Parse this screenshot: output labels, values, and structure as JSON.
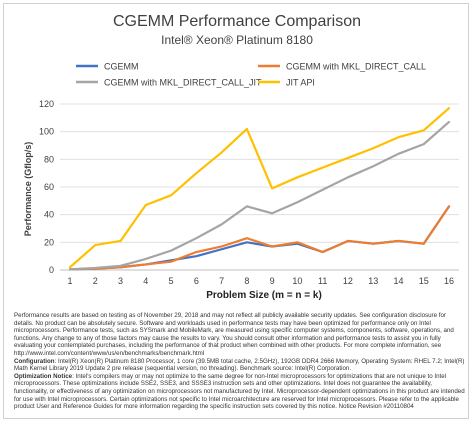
{
  "chart_data": {
    "type": "line",
    "title": "CGEMM Performance Comparison",
    "subtitle": "Intel® Xeon® Platinum 8180",
    "xlabel": "Problem Size (m = n = k)",
    "ylabel": "Performance (Gflop/s)",
    "x": [
      1,
      2,
      3,
      4,
      5,
      6,
      7,
      8,
      9,
      10,
      11,
      12,
      13,
      14,
      15,
      16
    ],
    "ylim": [
      0,
      120
    ],
    "yticks": [
      0,
      20,
      40,
      60,
      80,
      100,
      120
    ],
    "grid": true,
    "legend_position": "top",
    "series": [
      {
        "name": "CGEMM",
        "color": "#4472c4",
        "values": [
          0.5,
          1,
          2,
          4,
          7,
          10,
          15,
          20,
          17,
          19,
          13,
          21,
          19,
          21,
          19,
          46
        ]
      },
      {
        "name": "CGEMM with MKL_DIRECT_CALL",
        "color": "#ed7d31",
        "values": [
          0.5,
          1,
          2,
          4,
          6,
          13,
          17,
          23,
          17,
          20,
          13,
          21,
          19,
          21,
          19,
          46
        ]
      },
      {
        "name": "CGEMM with MKL_DIRECT_CALL_JIT",
        "color": "#a5a5a5",
        "values": [
          0.5,
          1.5,
          3,
          8,
          14,
          23,
          33,
          46,
          41,
          49,
          58,
          67,
          75,
          84,
          91,
          107
        ]
      },
      {
        "name": "JIT API",
        "color": "#ffc000",
        "values": [
          2,
          18,
          21,
          47,
          54,
          70,
          85,
          102,
          59,
          67,
          74,
          81,
          88,
          96,
          101,
          117
        ]
      }
    ]
  },
  "footnote": {
    "p1": "Performance results are based on testing as of November 29, 2018 and may not reflect all publicly available security updates. See configuration disclosure for details. No product can be absolutely secure. Software and workloads used in performance tests may have been optimized for performance only on Intel microprocessors. Performance tests, such as SYSmark and MobileMark, are measured using specific computer systems, components, software, operations, and functions. Any change to any of those factors may cause the results to vary. You should consult other information and performance tests to assist you in fully evaluating your contemplated purchases, including the performance of that product when combined with other products. For more complete information, see http://www.intel.com/content/www/us/en/benchmarks/benchmark.html",
    "config_label": "Configuration",
    "config_text": ": Intel(R) Xeon(R) Platinum 8180 Processor, 1 core (39.5MB total cache, 2.5GHz), 192GB DDR4 2666 Memory, Operating System: RHEL 7.2; Intel(R) Math Kernel Library 2019 Update 2 pre release (sequential version, no threading). Benchmark source: Intel(R) Corporation.",
    "opt_label": "Optimization Notice",
    "opt_text": ": Intel's compilers may or may not optimize to the same degree for non-Intel microprocessors for optimizations that are not unique to Intel microprocessors. These optimizations include SSE2, SSE3, and SSSE3 instruction sets and other optimizations. Intel does not guarantee the availability, functionality, or effectiveness of any optimization on microprocessors not manufactured by Intel. Microprocessor-dependent optimizations in this product are intended for use with Intel microprocessors. Certain optimizations not specific to Intel microarchitecture are reserved for Intel microprocessors. Please refer to the applicable product User and Reference Guides for more information regarding the specific instruction sets covered by this notice. Notice Revision #20110804"
  }
}
